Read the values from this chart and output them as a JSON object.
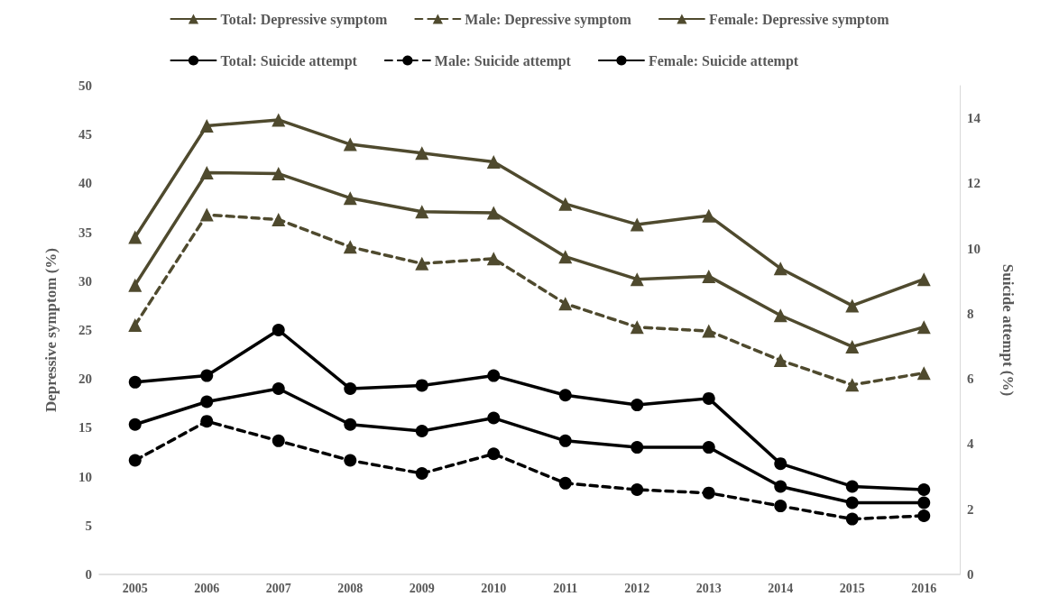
{
  "chart_data": {
    "type": "line",
    "ylabel": "Depressive symptom (%)",
    "y2label": "Suicide attempt (%)",
    "categories": [
      "2005",
      "2006",
      "2007",
      "2008",
      "2009",
      "2010",
      "2011",
      "2012",
      "2013",
      "2014",
      "2015",
      "2016"
    ],
    "ylim": [
      0,
      50
    ],
    "yticks": [
      0,
      5,
      10,
      15,
      20,
      25,
      30,
      35,
      40,
      45,
      50
    ],
    "y2lim": [
      0,
      15
    ],
    "y2ticks": [
      0,
      2,
      4,
      6,
      8,
      10,
      12,
      14
    ],
    "grid": false,
    "legend": "top",
    "series": [
      {
        "name": "Total: Depressive symptom",
        "color": "#4f4a2e",
        "marker": "triangle",
        "line_style": "solid",
        "values": [
          29.6,
          41.1,
          41.0,
          38.5,
          37.1,
          37.0,
          32.5,
          30.2,
          30.5,
          26.5,
          23.3,
          25.3
        ]
      },
      {
        "name": "Male: Depressive symptom",
        "color": "#4f4a2e",
        "marker": "triangle",
        "line_style": "dashed",
        "values": [
          25.5,
          36.8,
          36.3,
          33.5,
          31.8,
          32.3,
          27.7,
          25.3,
          24.9,
          21.9,
          19.4,
          20.6
        ]
      },
      {
        "name": "Female: Depressive symptom",
        "color": "#4f4a2e",
        "marker": "triangle",
        "line_style": "solid",
        "values": [
          34.5,
          45.9,
          46.5,
          44.0,
          43.1,
          42.2,
          37.9,
          35.8,
          36.7,
          31.3,
          27.5,
          30.2
        ]
      },
      {
        "name": "Total: Suicide attempt",
        "color": "#000000",
        "marker": "circle",
        "line_style": "solid",
        "axis": "y2",
        "values": [
          4.6,
          5.3,
          5.7,
          4.6,
          4.4,
          4.8,
          4.1,
          3.9,
          3.9,
          2.7,
          2.2,
          2.2
        ]
      },
      {
        "name": "Male: Suicide attempt",
        "color": "#000000",
        "marker": "circle",
        "line_style": "dashed",
        "axis": "y2",
        "values": [
          3.5,
          4.7,
          4.1,
          3.5,
          3.1,
          3.7,
          2.8,
          2.6,
          2.5,
          2.1,
          1.7,
          1.8
        ]
      },
      {
        "name": "Female: Suicide attempt",
        "color": "#000000",
        "marker": "circle",
        "line_style": "solid",
        "axis": "y2",
        "values": [
          5.9,
          6.1,
          7.5,
          5.7,
          5.8,
          6.1,
          5.5,
          5.2,
          5.4,
          3.4,
          2.7,
          2.6
        ]
      }
    ]
  }
}
